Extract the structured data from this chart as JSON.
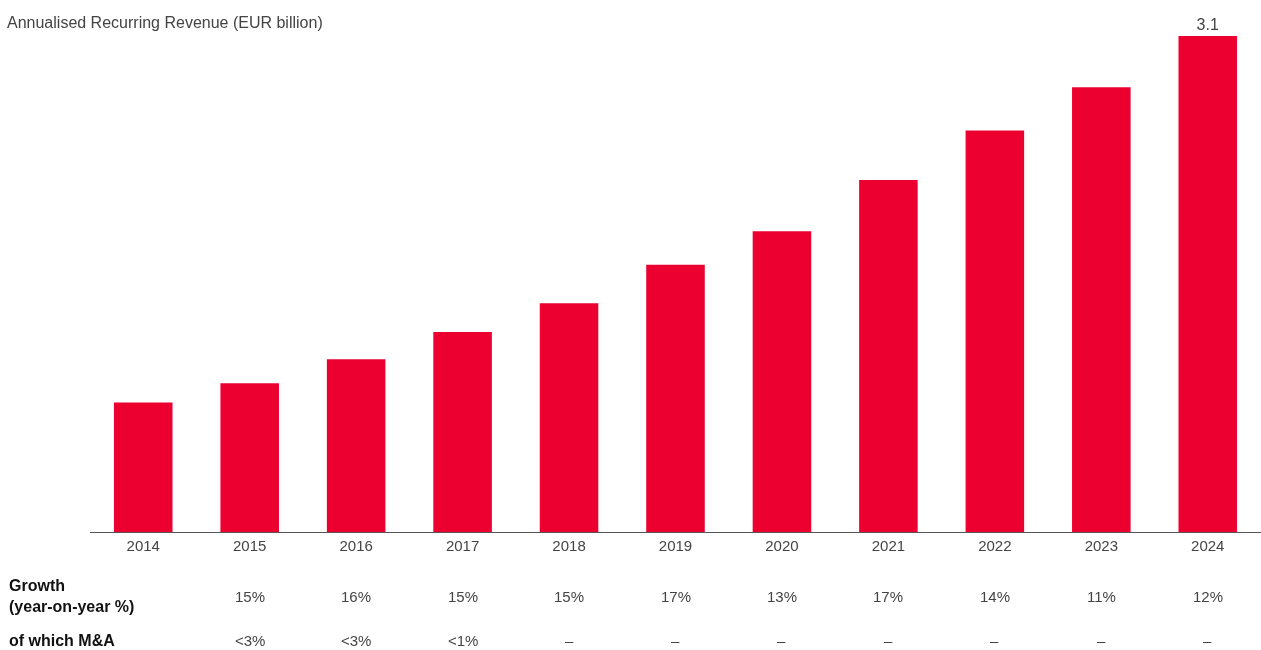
{
  "chart_data": {
    "type": "bar",
    "title": "Annualised Recurring Revenue (EUR billion)",
    "categories": [
      "2014",
      "2015",
      "2016",
      "2017",
      "2018",
      "2019",
      "2020",
      "2021",
      "2022",
      "2023",
      "2024"
    ],
    "values": [
      0.81,
      0.93,
      1.08,
      1.25,
      1.43,
      1.67,
      1.88,
      2.2,
      2.51,
      2.78,
      3.1
    ],
    "value_labels": [
      null,
      null,
      null,
      null,
      null,
      null,
      null,
      null,
      null,
      null,
      "3.1"
    ],
    "color": "#eb0030",
    "tick_labels": "x",
    "grid": false,
    "annotations": [
      "Growth\n(year-on-year %)",
      "15%",
      "16%",
      "15%",
      "15%",
      "17%",
      "13%",
      "17%",
      "14%",
      "11%",
      "12%",
      "of which M&A",
      "<3%",
      "<3%",
      "<1%",
      "–",
      "–",
      "–",
      "–",
      "–",
      "–",
      "–"
    ]
  }
}
